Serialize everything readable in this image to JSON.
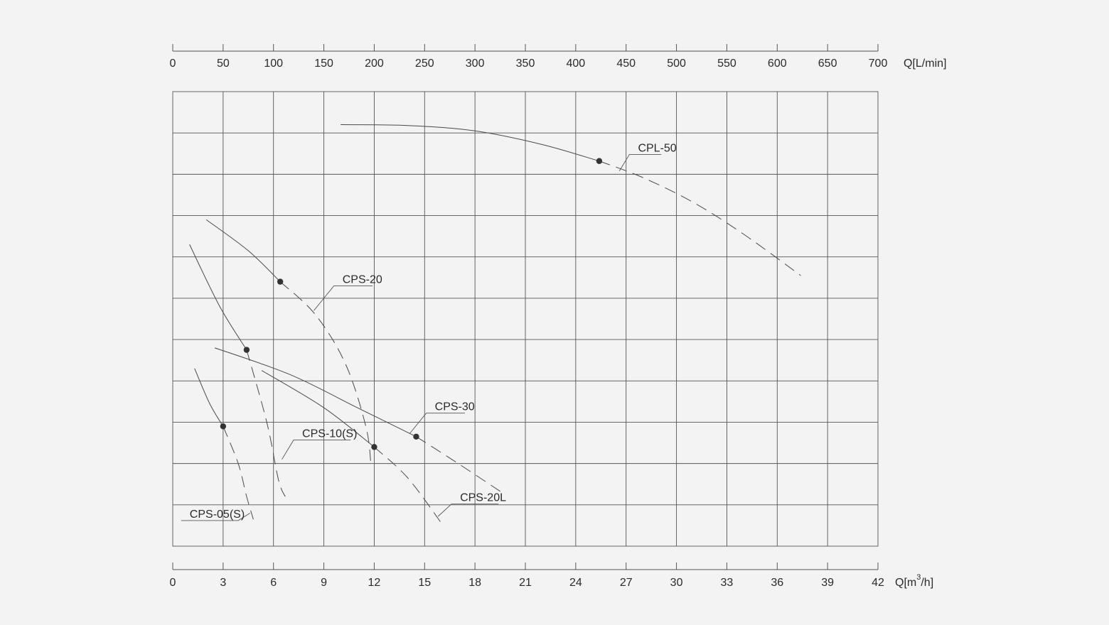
{
  "chart_data": {
    "type": "line",
    "title": "",
    "top_axis": {
      "label": "Q[L/min]",
      "ticks": [
        0,
        50,
        100,
        150,
        200,
        250,
        300,
        350,
        400,
        450,
        500,
        550,
        600,
        650,
        700
      ]
    },
    "bottom_axis": {
      "label_prefix": "Q[m",
      "label_sup": "3",
      "label_suffix": "/h]",
      "ticks": [
        0,
        3,
        6,
        9,
        12,
        15,
        18,
        21,
        24,
        27,
        30,
        33,
        36,
        39,
        42
      ]
    },
    "xlim": [
      0,
      42
    ],
    "ylim": [
      0,
      11
    ],
    "grid": true,
    "y_tick_labels_shown": false,
    "series": [
      {
        "name": "CPL-50",
        "solid": [
          [
            10,
            10.2
          ],
          [
            14,
            10.18
          ],
          [
            18,
            10.05
          ],
          [
            22,
            9.72
          ],
          [
            25.4,
            9.32
          ]
        ],
        "dashed": [
          [
            25.4,
            9.32
          ],
          [
            28,
            8.92
          ],
          [
            31,
            8.32
          ],
          [
            34,
            7.55
          ],
          [
            37.4,
            6.55
          ]
        ],
        "operating_point": [
          25.4,
          9.32
        ]
      },
      {
        "name": "CPS-20",
        "solid": [
          [
            2,
            7.9
          ],
          [
            4.5,
            7.15
          ],
          [
            6.4,
            6.4
          ]
        ],
        "dashed": [
          [
            6.4,
            6.4
          ],
          [
            8.5,
            5.6
          ],
          [
            10.3,
            4.4
          ],
          [
            11.5,
            2.9
          ],
          [
            11.8,
            2.0
          ]
        ],
        "operating_point": [
          6.4,
          6.4
        ]
      },
      {
        "name": "CPS-10(S)",
        "solid": [
          [
            1,
            7.3
          ],
          [
            2.8,
            5.8
          ],
          [
            4.4,
            4.75
          ]
        ],
        "dashed": [
          [
            4.4,
            4.75
          ],
          [
            5.6,
            3.0
          ],
          [
            6.3,
            1.6
          ],
          [
            6.7,
            1.2
          ]
        ],
        "operating_point": [
          4.4,
          4.75
        ]
      },
      {
        "name": "CPS-30",
        "solid": [
          [
            2.5,
            4.8
          ],
          [
            7,
            4.15
          ],
          [
            11,
            3.35
          ],
          [
            14.5,
            2.65
          ]
        ],
        "dashed": [
          [
            14.5,
            2.65
          ],
          [
            17,
            2.0
          ],
          [
            19.6,
            1.3
          ]
        ],
        "operating_point": [
          14.5,
          2.65
        ]
      },
      {
        "name": "CPS-20L",
        "solid": [
          [
            5.3,
            4.25
          ],
          [
            9,
            3.35
          ],
          [
            12,
            2.4
          ]
        ],
        "dashed": [
          [
            12,
            2.4
          ],
          [
            14,
            1.65
          ],
          [
            16.1,
            0.5
          ]
        ],
        "operating_point": [
          12,
          2.4
        ]
      },
      {
        "name": "CPS-05(S)",
        "solid": [
          [
            1.3,
            4.3
          ],
          [
            2.2,
            3.45
          ],
          [
            3,
            2.9
          ]
        ],
        "dashed": [
          [
            3,
            2.9
          ],
          [
            3.9,
            2.0
          ],
          [
            4.4,
            1.2
          ],
          [
            4.8,
            0.65
          ]
        ],
        "operating_point": [
          3,
          2.9
        ]
      }
    ],
    "annotations": [
      {
        "text": "CPL-50",
        "leader_from": [
          26.6,
          9.08
        ],
        "leader_elbow": [
          27.2,
          9.48
        ],
        "underline_to": [
          29.1,
          9.48
        ]
      },
      {
        "text": "CPS-20",
        "leader_from": [
          8.4,
          5.7
        ],
        "leader_elbow": [
          9.6,
          6.3
        ],
        "underline_to": [
          11.9,
          6.3
        ]
      },
      {
        "text": "CPS-30",
        "leader_from": [
          14.1,
          2.72
        ],
        "leader_elbow": [
          15.1,
          3.22
        ],
        "underline_to": [
          17.4,
          3.22
        ]
      },
      {
        "text": "CPS-10(S)",
        "leader_from": [
          6.5,
          2.1
        ],
        "leader_elbow": [
          7.2,
          2.57
        ],
        "underline_to": [
          10.6,
          2.57
        ]
      },
      {
        "text": "CPS-20L",
        "leader_from": [
          15.8,
          0.72
        ],
        "leader_elbow": [
          16.6,
          1.02
        ],
        "underline_to": [
          19.4,
          1.02
        ]
      },
      {
        "text": "CPS-05(S)",
        "leader_from": [
          4.6,
          0.8
        ],
        "leader_elbow": [
          3.9,
          0.62
        ],
        "underline_to": [
          0.5,
          0.62
        ]
      }
    ]
  }
}
